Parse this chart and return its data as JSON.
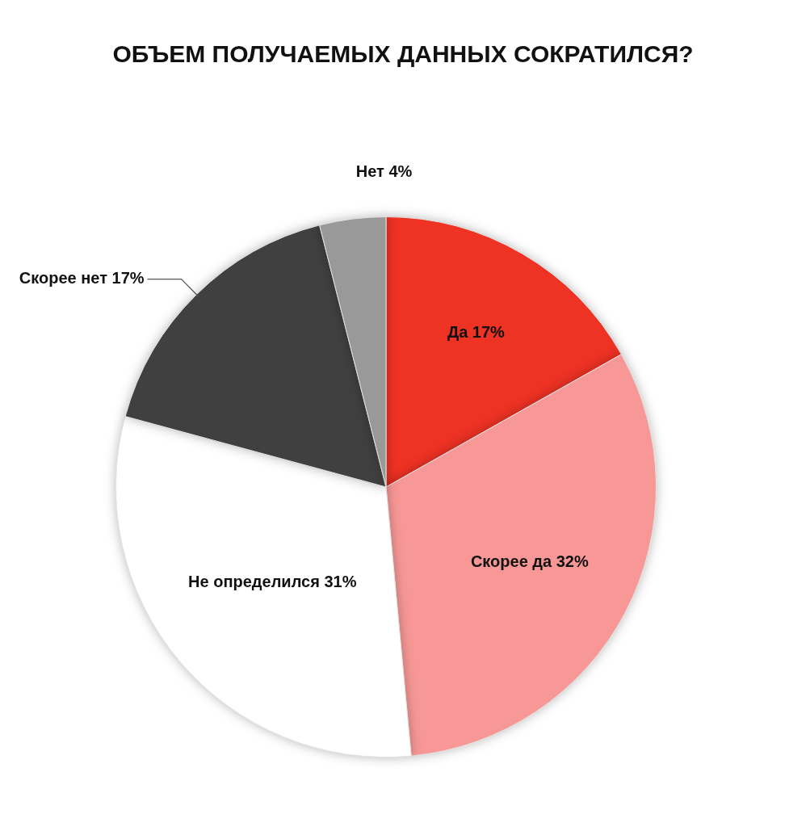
{
  "chart_data": {
    "type": "pie",
    "title": "ОБЪЕМ ПОЛУЧАЕМЫХ ДАННЫХ СОКРАТИЛСЯ?",
    "categories": [
      "Да",
      "Скорее да",
      "Не определился",
      "Скорее нет",
      "Нет"
    ],
    "values": [
      17,
      32,
      31,
      17,
      4
    ],
    "colors": [
      "#ee3224",
      "#f79896",
      "#ffffff",
      "#404040",
      "#999999"
    ],
    "value_labels": [
      "17%",
      "32%",
      "31%",
      "17%",
      "4%"
    ],
    "legend": false
  }
}
